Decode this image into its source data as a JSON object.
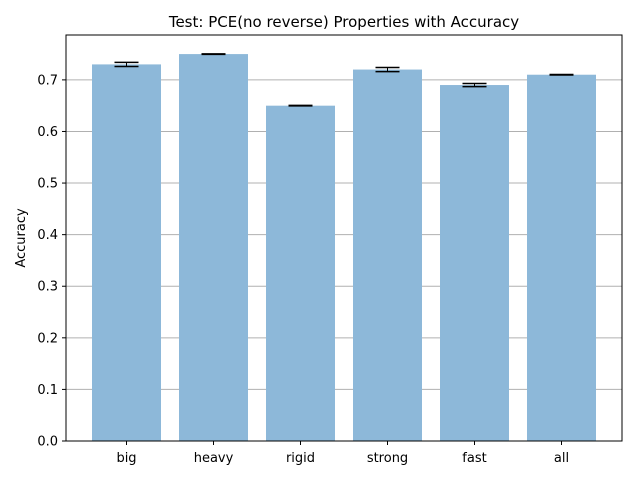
{
  "chart_data": {
    "type": "bar",
    "title": "Test: PCE(no reverse) Properties with Accuracy",
    "xlabel": "",
    "ylabel": "Accuracy",
    "categories": [
      "big",
      "heavy",
      "rigid",
      "strong",
      "fast",
      "all"
    ],
    "values": [
      0.73,
      0.75,
      0.65,
      0.72,
      0.69,
      0.71
    ],
    "errors": [
      0.004,
      0.0005,
      0.0005,
      0.004,
      0.003,
      0.0005
    ],
    "ylim": [
      0,
      0.787
    ],
    "yticks": [
      0.0,
      0.1,
      0.2,
      0.3,
      0.4,
      0.5,
      0.6,
      0.7
    ],
    "ytick_labels": [
      "0.0",
      "0.1",
      "0.2",
      "0.3",
      "0.4",
      "0.5",
      "0.6",
      "0.7"
    ],
    "grid": "horizontal",
    "bar_color": "#8db8d9",
    "error_bar_color": "#000000",
    "grid_color": "#b0b0b0"
  }
}
